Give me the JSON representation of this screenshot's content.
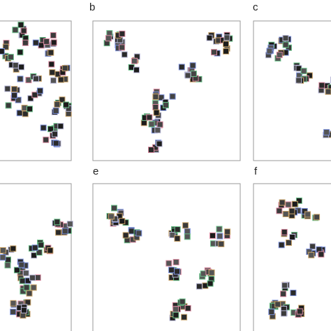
{
  "panels": [
    {
      "label": "b"
    },
    {
      "label": "c"
    },
    {
      "label": "e"
    },
    {
      "label": "f"
    }
  ]
}
